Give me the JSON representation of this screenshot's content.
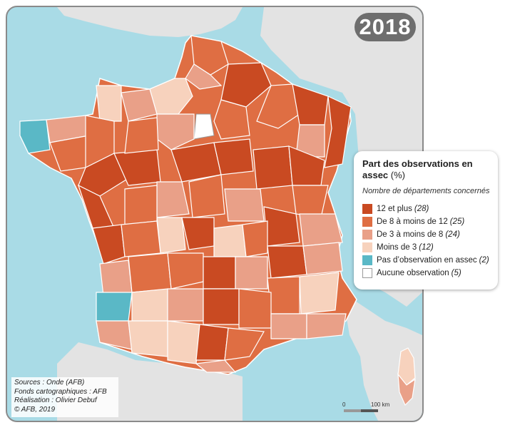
{
  "year": "2018",
  "legend": {
    "title": "Part des observations en assec",
    "unit": "(%)",
    "subtitle": "Nombre de départements concernés",
    "classes": [
      {
        "label": "12 et plus",
        "count": "(28)",
        "color": "#c94a22"
      },
      {
        "label": "De 8 à moins de 12",
        "count": "(25)",
        "color": "#df6e43"
      },
      {
        "label": "De 3 à moins de 8",
        "count": "(24)",
        "color": "#e9a088"
      },
      {
        "label": "Moins de 3",
        "count": "(12)",
        "color": "#f7d2bd"
      },
      {
        "label": "Pas d’observation en assec",
        "count": "(2)",
        "color": "#5ab8c6"
      },
      {
        "label": "Aucune observation",
        "count": "(5)",
        "color": "#ffffff"
      }
    ]
  },
  "sources": {
    "line1": "Sources : Onde (AFB)",
    "line2": "Fonds cartographiques : AFB",
    "line3": "Réalisation : Olivier Debuf",
    "line4": "© AFB, 2019"
  },
  "scale": {
    "min": "0",
    "max": "100 km"
  },
  "colors": {
    "sea": "#a9dbe6",
    "land_outside": "#e3e3e3",
    "border": "#ffffff"
  }
}
